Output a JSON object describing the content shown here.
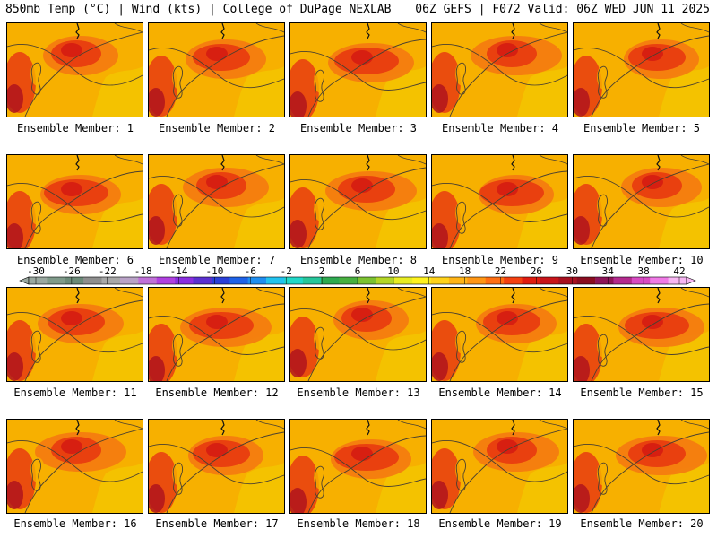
{
  "header": {
    "left": "850mb Temp (°C) | Wind (kts) | College of DuPage NEXLAB",
    "right": "06Z GEFS | F072 Valid: 06Z WED JUN 11 2025"
  },
  "member_label_prefix": "Ensemble Member:",
  "members": [
    1,
    2,
    3,
    4,
    5,
    6,
    7,
    8,
    9,
    10,
    11,
    12,
    13,
    14,
    15,
    16,
    17,
    18,
    19,
    20
  ],
  "colorbar": {
    "tick_labels": [
      "-30",
      "-26",
      "-22",
      "-18",
      "-14",
      "-10",
      "-6",
      "-2",
      "2",
      "6",
      "10",
      "14",
      "18",
      "22",
      "26",
      "30",
      "34",
      "38",
      "42"
    ],
    "colors": [
      "#9aa8a0",
      "#7f9a8a",
      "#6b8a78",
      "#8e8e8e",
      "#a8a8a8",
      "#b9a2c7",
      "#c070d8",
      "#b040e0",
      "#8a2ee0",
      "#5b30d0",
      "#2a3fd8",
      "#1e62e8",
      "#1f8ef0",
      "#22c3ef",
      "#20d8c8",
      "#26c69a",
      "#2eaa50",
      "#47b040",
      "#7cc230",
      "#b4d626",
      "#e8ec22",
      "#fff21e",
      "#ffd21a",
      "#ffb416",
      "#ff9614",
      "#ff6e12",
      "#f44010",
      "#e01c10",
      "#c8141a",
      "#a81020",
      "#8a0c20",
      "#8e1458",
      "#b42a8e",
      "#d84ac2",
      "#f07ae6",
      "#f7b6f2"
    ],
    "colors_role": "temperature color scale from -30 to 42 °C"
  }
}
